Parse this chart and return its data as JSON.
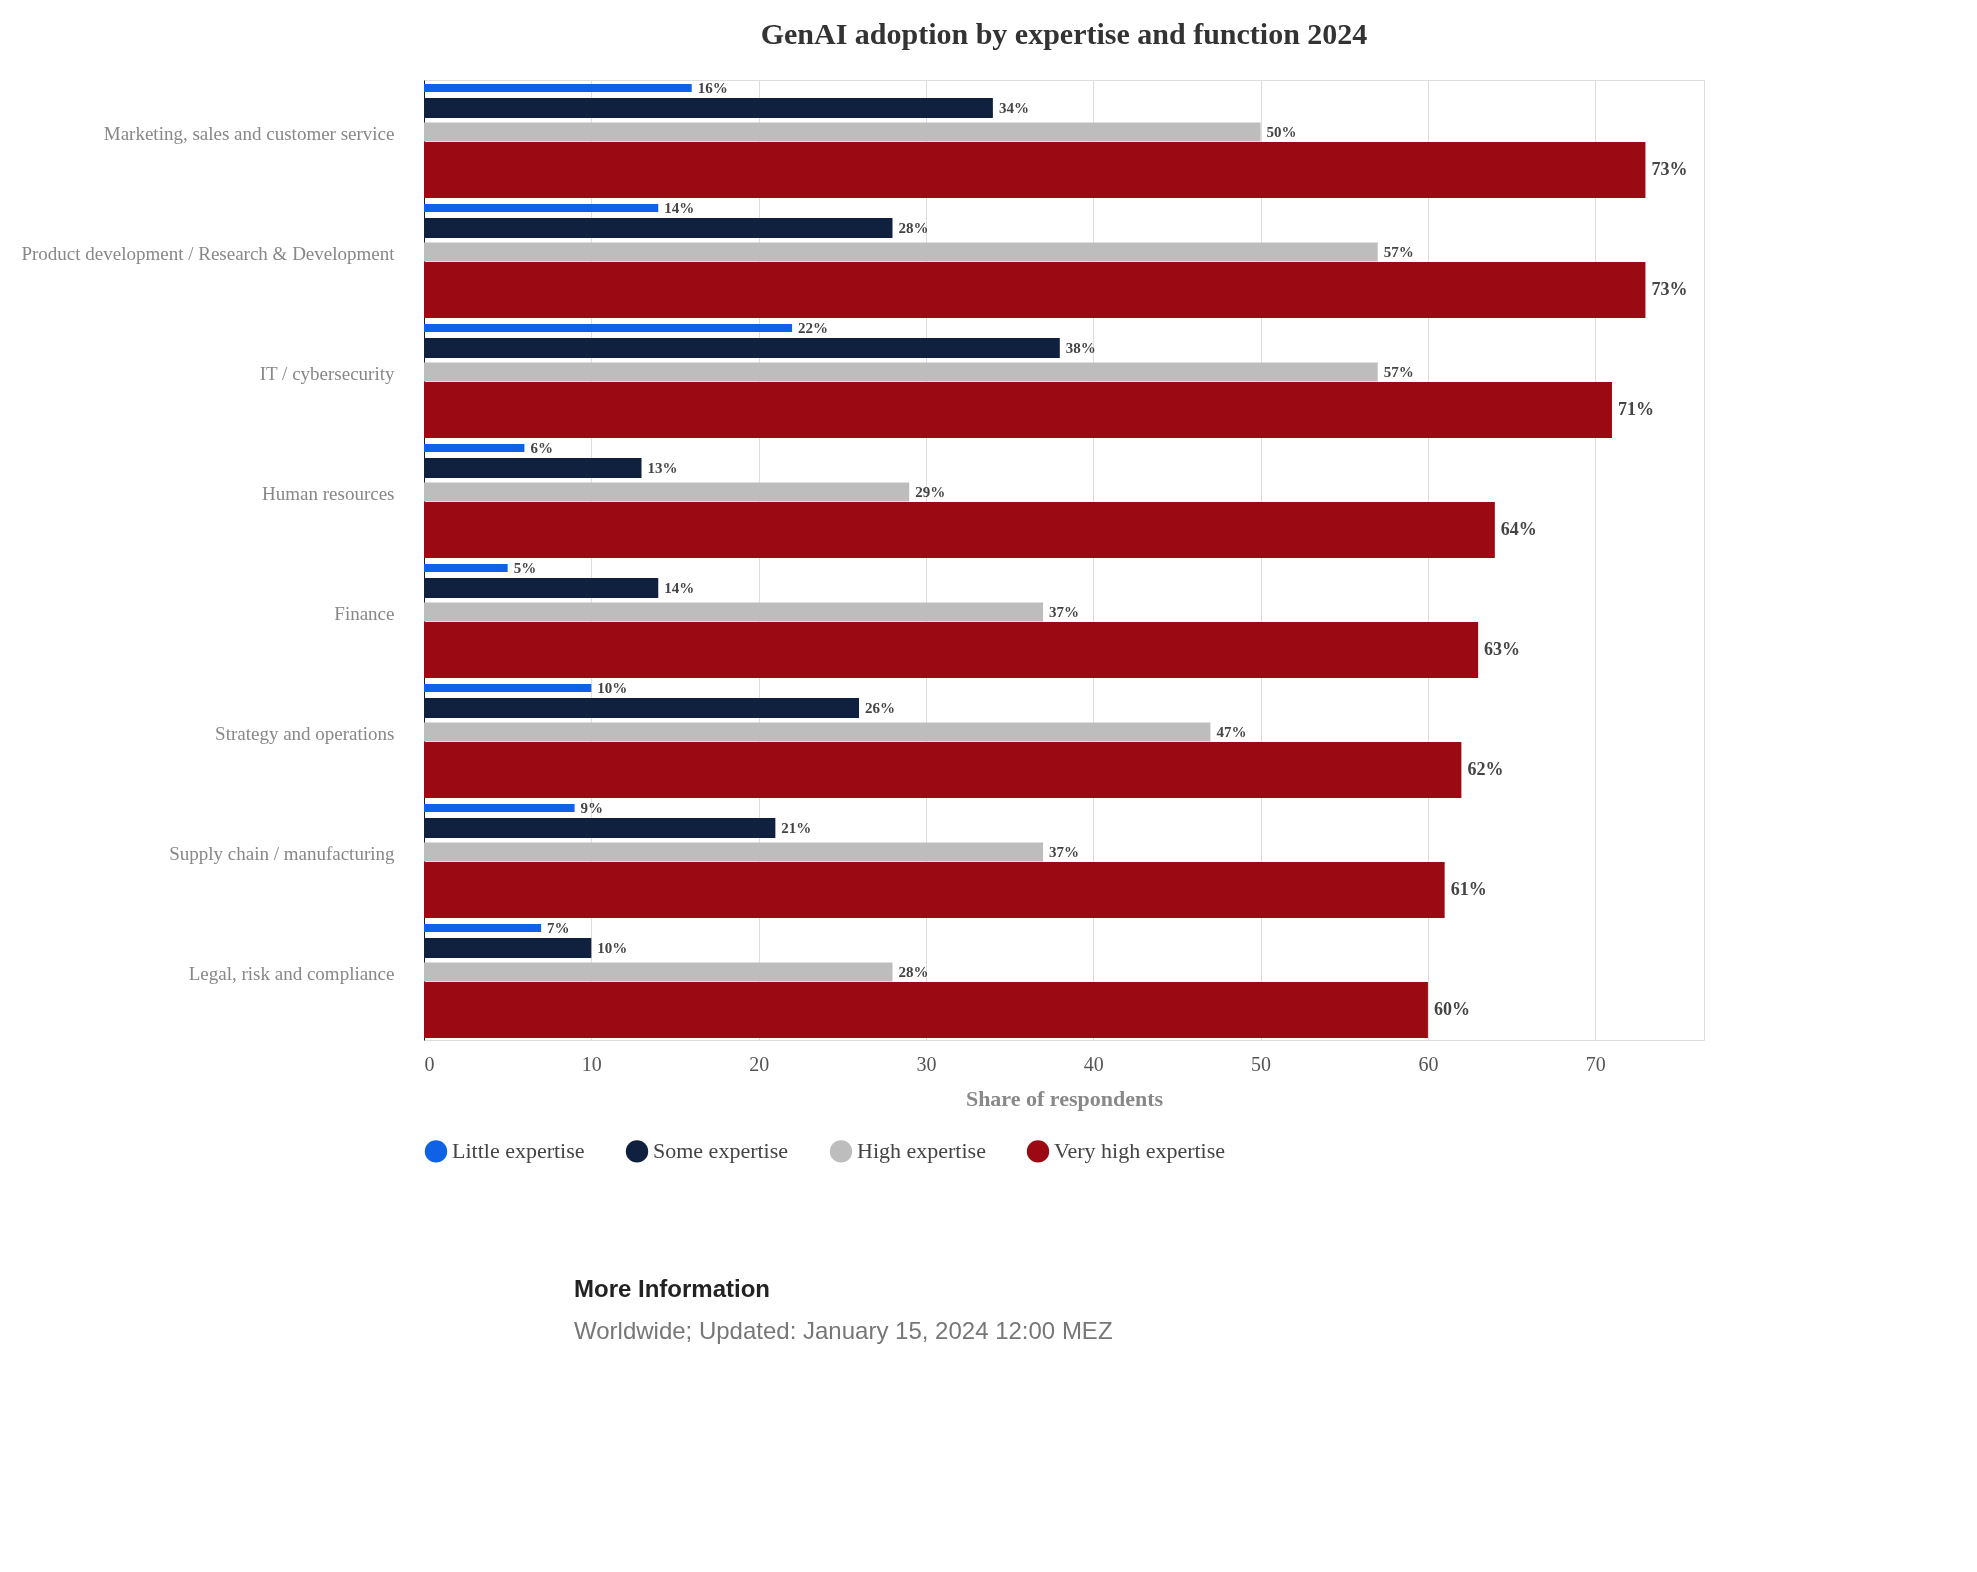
{
  "chart_data": {
    "type": "bar",
    "orientation": "horizontal",
    "title": "GenAI adoption by expertise and function 2024",
    "xlabel": "Share of respondents",
    "categories": [
      "Marketing, sales and customer service",
      "Product development / Research & Development",
      "IT / cybersecurity",
      "Human resources",
      "Finance",
      "Strategy and operations",
      "Supply chain / manufacturing",
      "Legal, risk and compliance"
    ],
    "series": [
      {
        "name": "Little expertise",
        "color": "#0f62e6",
        "values": [
          16,
          14,
          22,
          6,
          5,
          10,
          9,
          7
        ]
      },
      {
        "name": "Some expertise",
        "color": "#10213f",
        "values": [
          34,
          28,
          38,
          13,
          14,
          26,
          21,
          10
        ]
      },
      {
        "name": "High expertise",
        "color": "#bdbdbd",
        "values": [
          50,
          57,
          57,
          29,
          37,
          47,
          37,
          28
        ]
      },
      {
        "name": "Very high expertise",
        "color": "#9b0a12",
        "values": [
          73,
          73,
          71,
          64,
          63,
          62,
          61,
          60
        ]
      }
    ],
    "value_labels": [
      [
        "16%",
        "14%",
        "22%",
        "6%",
        "5%",
        "10%",
        "9%",
        "7%"
      ],
      [
        "34%",
        "28%",
        "38%",
        "13%",
        "14%",
        "26%",
        "21%",
        "10%"
      ],
      [
        "50%",
        "57%",
        "57%",
        "29%",
        "37%",
        "47%",
        "37%",
        "28%"
      ],
      [
        "73%",
        "73%",
        "71%",
        "64%",
        "63%",
        "62%",
        "61%",
        "60%"
      ]
    ],
    "xlim": [
      0,
      76.5
    ],
    "xticks": [
      0,
      10,
      20,
      30,
      40,
      50,
      60,
      70
    ],
    "grid": "x",
    "legend": "bottom",
    "annotations": [
      "More Information",
      "Worldwide; Updated: January 15, 2024 12:00 MEZ"
    ]
  }
}
